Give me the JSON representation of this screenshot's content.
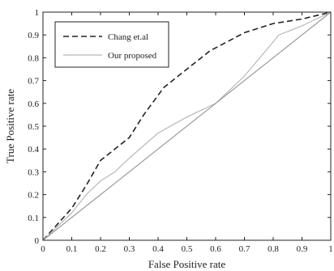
{
  "chart_data": {
    "type": "line",
    "xlabel": "False Positive rate",
    "ylabel": "True Positive rate",
    "xlim": [
      0,
      1
    ],
    "ylim": [
      0,
      1
    ],
    "x_ticks": [
      0,
      0.1,
      0.2,
      0.3,
      0.4,
      0.5,
      0.6,
      0.7,
      0.8,
      0.9,
      1
    ],
    "y_ticks": [
      0,
      0.1,
      0.2,
      0.3,
      0.4,
      0.5,
      0.6,
      0.7,
      0.8,
      0.9,
      1
    ],
    "x_tick_labels": [
      "0",
      "0.1",
      "0.2",
      "0.3",
      "0.4",
      "0.5",
      "0.6",
      "0.7",
      "0.8",
      "0.9",
      "1"
    ],
    "y_tick_labels": [
      "0",
      "0.1",
      "0.2",
      "0.3",
      "0.4",
      "0.5",
      "0.6",
      "0.7",
      "0.8",
      "0.9",
      "1"
    ],
    "grid": false,
    "legend_position": "top-left",
    "series": [
      {
        "name": "Chang et.al",
        "style": "dashed",
        "color": "#222222",
        "x": [
          0,
          0.1,
          0.15,
          0.2,
          0.3,
          0.35,
          0.42,
          0.5,
          0.58,
          0.7,
          0.8,
          0.9,
          1
        ],
        "y": [
          0,
          0.14,
          0.24,
          0.35,
          0.45,
          0.55,
          0.67,
          0.75,
          0.83,
          0.91,
          0.95,
          0.97,
          1
        ]
      },
      {
        "name": "Our proposed",
        "style": "solid",
        "color": "#b8b8b8",
        "x": [
          0,
          0.1,
          0.15,
          0.2,
          0.25,
          0.3,
          0.4,
          0.5,
          0.6,
          0.7,
          0.8,
          0.82,
          0.9,
          1
        ],
        "y": [
          0,
          0.12,
          0.2,
          0.26,
          0.3,
          0.36,
          0.47,
          0.54,
          0.6,
          0.72,
          0.87,
          0.9,
          0.94,
          1
        ]
      },
      {
        "name": "",
        "style": "solid",
        "color": "#9a9a9a",
        "x": [
          0,
          1
        ],
        "y": [
          0,
          1
        ]
      }
    ]
  }
}
